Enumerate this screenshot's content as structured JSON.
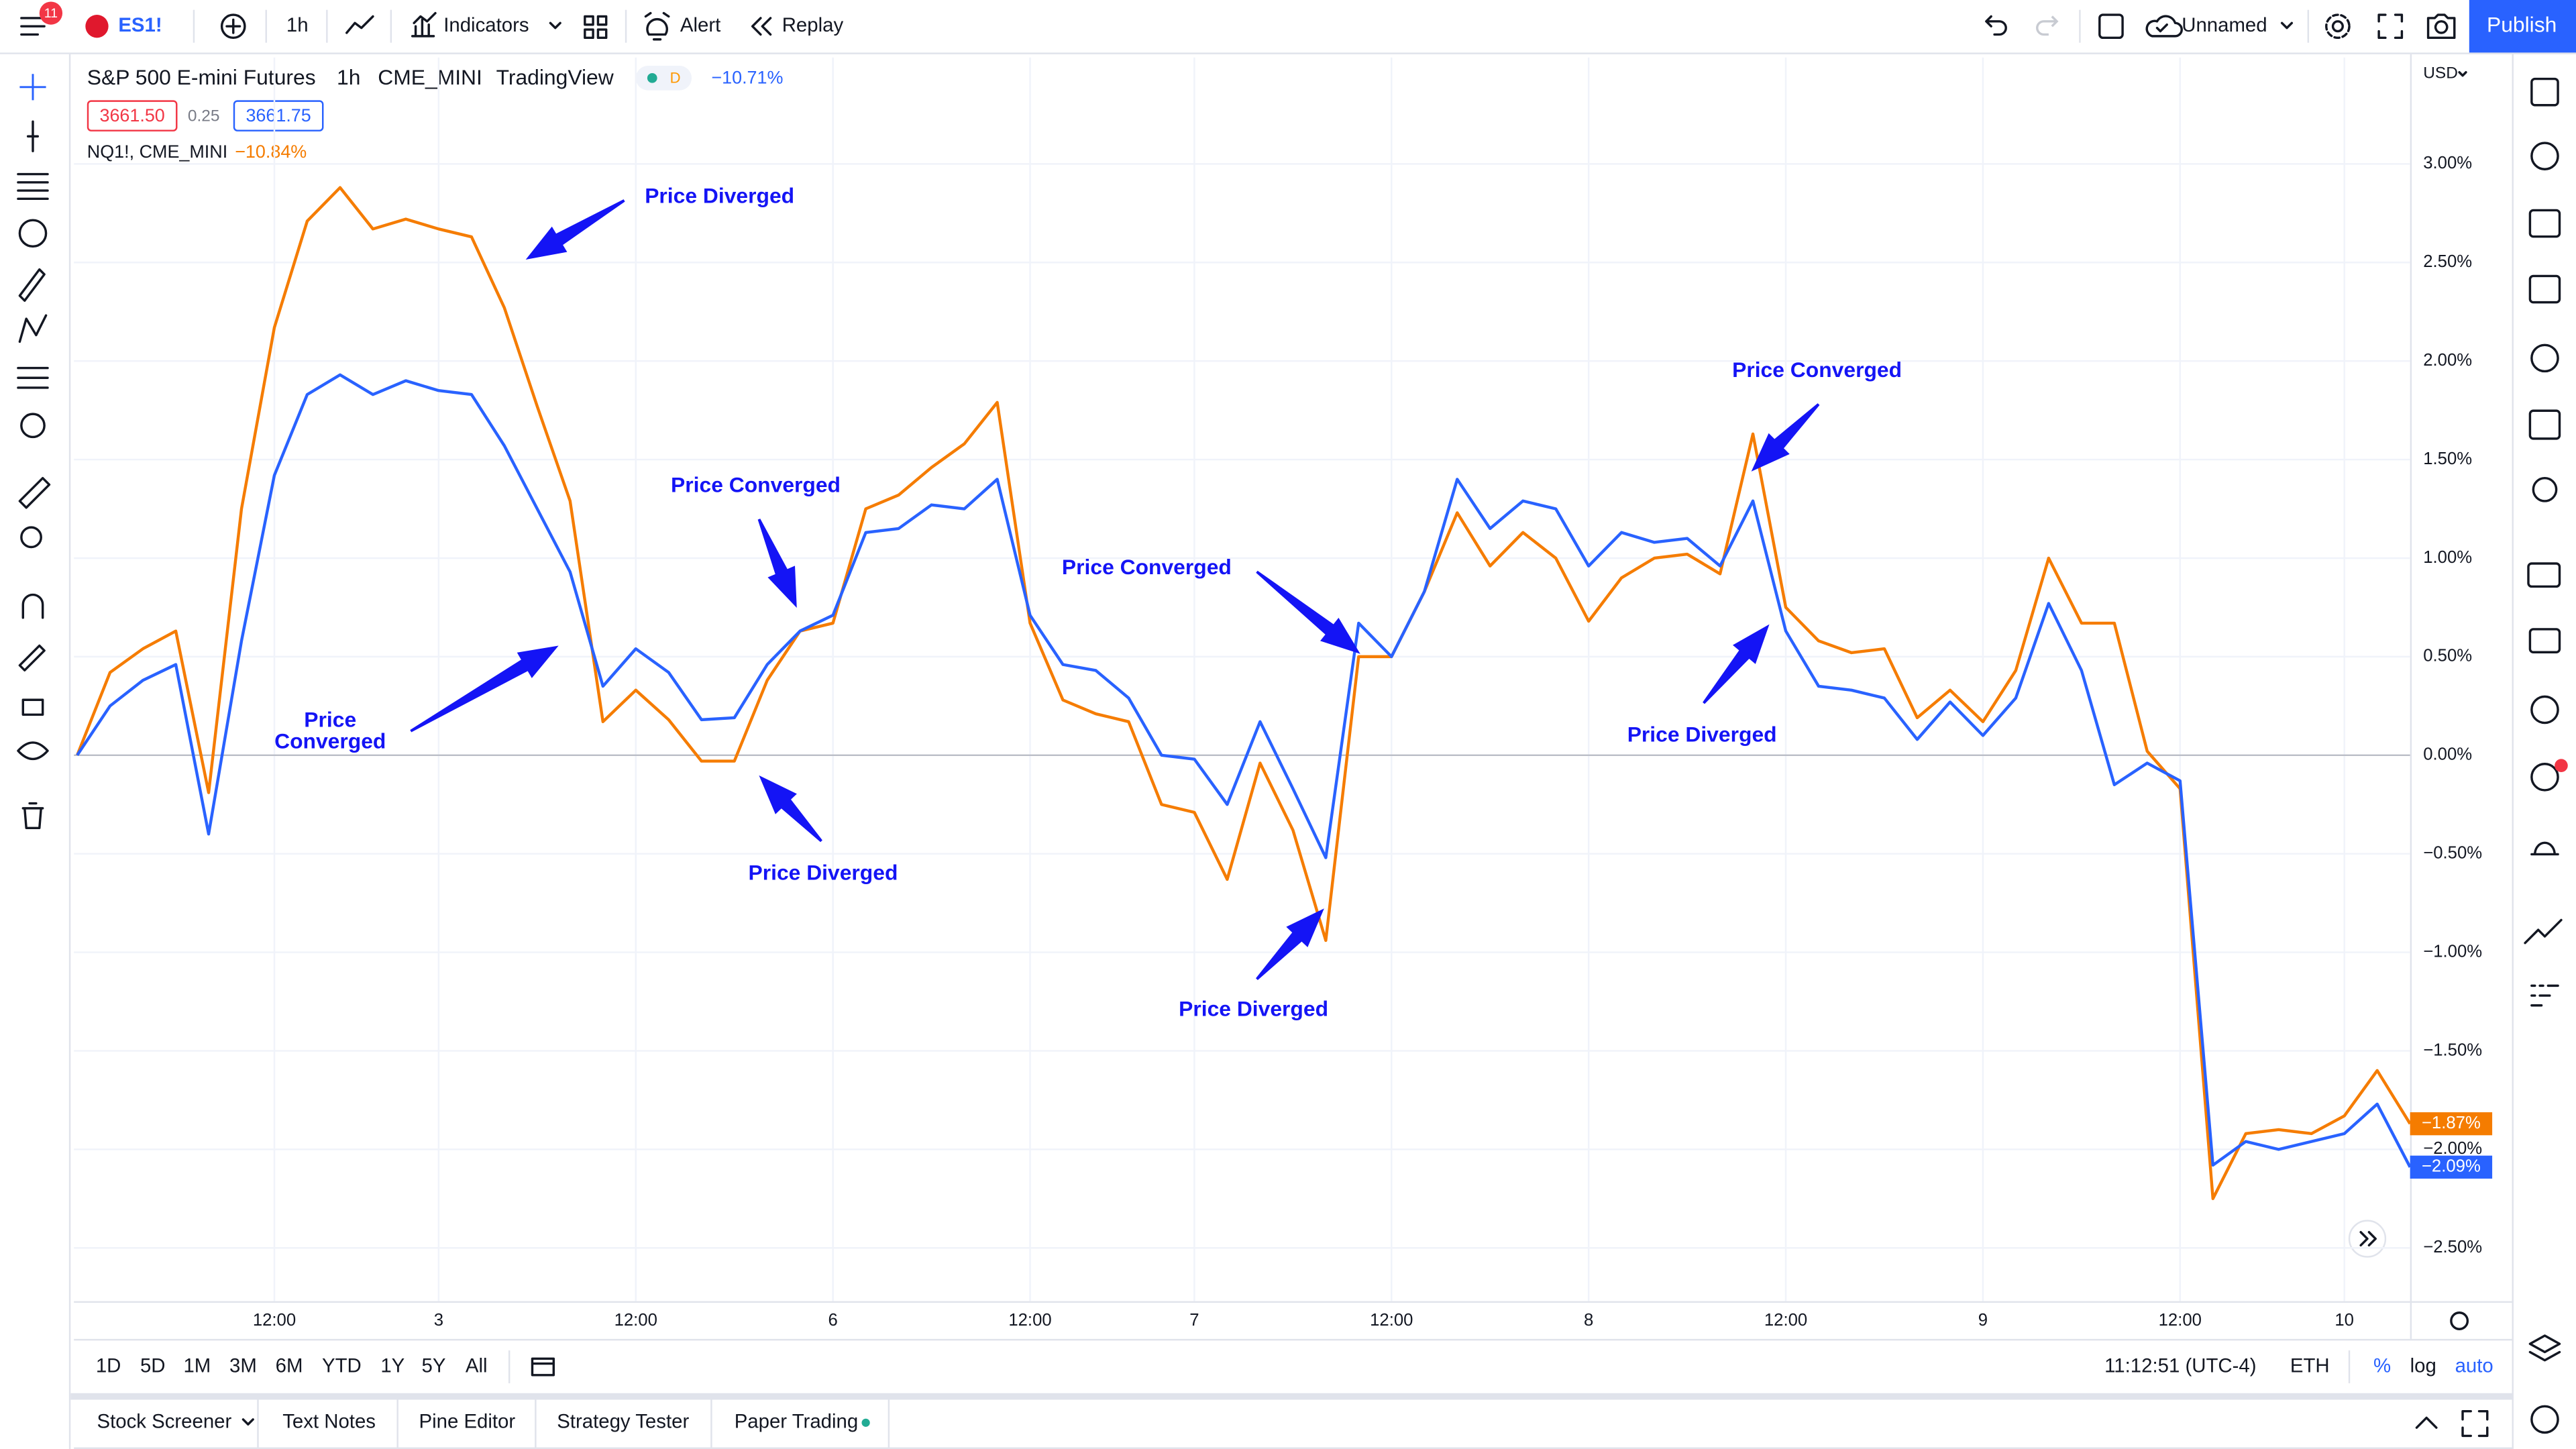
{
  "ui": {
    "top_bar": {
      "badge": "11",
      "symbol": "ES1!",
      "interval": "1h",
      "indicators": "Indicators",
      "alert": "Alert",
      "replay": "Replay",
      "layout_name": "Unnamed",
      "publish": "Publish"
    },
    "legend": {
      "interval": "1h",
      "exchange": "CME_MINI",
      "source": "TradingView",
      "flag": "D",
      "change": "−10.71%",
      "sell": "3661.50",
      "spread": "0.25",
      "buy": "3661.75",
      "compare_change": "−10.84%"
    },
    "currency": "USD",
    "bottom_bar": {
      "ranges": [
        "1D",
        "5D",
        "1M",
        "3M",
        "6M",
        "YTD",
        "1Y",
        "5Y",
        "All"
      ],
      "clock": "11:12:51 (UTC-4)",
      "session": "ETH",
      "percent": "%",
      "log": "log",
      "auto": "auto"
    },
    "tabs": [
      "Stock Screener",
      "Text Notes",
      "Pine Editor",
      "Strategy Tester",
      "Paper Trading"
    ]
  },
  "chart_data": {
    "type": "line",
    "categories": [
      null,
      null,
      null,
      null,
      null,
      null,
      "12:00",
      null,
      null,
      null,
      null,
      "3",
      null,
      null,
      null,
      null,
      null,
      "12:00",
      null,
      null,
      null,
      null,
      null,
      "6",
      null,
      null,
      null,
      null,
      null,
      "12:00",
      null,
      null,
      null,
      null,
      "7",
      null,
      null,
      null,
      null,
      null,
      "12:00",
      null,
      null,
      null,
      null,
      null,
      "8",
      null,
      null,
      null,
      null,
      null,
      "12:00",
      null,
      null,
      null,
      null,
      null,
      "9",
      null,
      null,
      null,
      null,
      null,
      "12:00",
      null,
      null,
      null,
      null,
      "10",
      null,
      null
    ],
    "series": [
      {
        "name": "S&P 500 E-mini Futures",
        "color": "#2962ff",
        "last_label": "−2.09%",
        "values": [
          0,
          0.25,
          0.38,
          0.46,
          -0.4,
          0.58,
          1.42,
          1.83,
          1.93,
          1.83,
          1.9,
          1.85,
          1.83,
          1.57,
          1.25,
          0.93,
          0.35,
          0.54,
          0.42,
          0.18,
          0.19,
          0.46,
          0.63,
          0.71,
          1.13,
          1.15,
          1.27,
          1.25,
          1.4,
          0.71,
          0.46,
          0.43,
          0.29,
          0,
          -0.02,
          -0.25,
          0.17,
          -0.17,
          -0.52,
          0.67,
          0.5,
          0.83,
          1.4,
          1.15,
          1.29,
          1.25,
          0.96,
          1.13,
          1.08,
          1.1,
          0.96,
          1.29,
          0.63,
          0.35,
          0.33,
          0.29,
          0.08,
          0.27,
          0.1,
          0.29,
          0.77,
          0.43,
          -0.15,
          -0.04,
          -0.13,
          -2.08,
          -1.96,
          -2,
          -1.96,
          -1.92,
          -1.77,
          -2.09
        ]
      },
      {
        "name": "NQ1!, CME_MINI",
        "color": "#f57c00",
        "last_label": "−1.87%",
        "values": [
          0,
          0.42,
          0.54,
          0.63,
          -0.19,
          1.25,
          2.17,
          2.71,
          2.88,
          2.67,
          2.72,
          2.67,
          2.63,
          2.27,
          1.77,
          1.29,
          0.17,
          0.33,
          0.18,
          -0.03,
          -0.03,
          0.38,
          0.63,
          0.67,
          1.25,
          1.32,
          1.46,
          1.58,
          1.79,
          0.67,
          0.28,
          0.21,
          0.17,
          -0.25,
          -0.29,
          -0.63,
          -0.04,
          -0.38,
          -0.94,
          0.5,
          0.5,
          0.83,
          1.23,
          0.96,
          1.13,
          1,
          0.68,
          0.9,
          1,
          1.02,
          0.92,
          1.63,
          0.75,
          0.58,
          0.52,
          0.54,
          0.19,
          0.33,
          0.17,
          0.43,
          1,
          0.67,
          0.67,
          0.02,
          -0.17,
          -2.25,
          -1.92,
          -1.9,
          -1.92,
          -1.83,
          -1.6,
          -1.87
        ]
      }
    ],
    "ylim": [
      -2.77,
      3.54
    ],
    "yticks": [
      {
        "value": 3,
        "label": "3.00%"
      },
      {
        "value": 2.5,
        "label": "2.50%"
      },
      {
        "value": 2,
        "label": "2.00%"
      },
      {
        "value": 1.5,
        "label": "1.50%"
      },
      {
        "value": 1,
        "label": "1.00%"
      },
      {
        "value": 0.5,
        "label": "0.50%"
      },
      {
        "value": 0,
        "label": "0.00%"
      },
      {
        "value": -0.5,
        "label": "−0.50%"
      },
      {
        "value": -1,
        "label": "−1.00%"
      },
      {
        "value": -1.5,
        "label": "−1.50%"
      },
      {
        "value": -2,
        "label": "−2.00%"
      },
      {
        "value": -2.5,
        "label": "−2.50%"
      }
    ],
    "grid": true,
    "annotations": [
      {
        "lines": [
          "Price Diverged"
        ]
      },
      {
        "lines": [
          "Price",
          "Converged"
        ]
      },
      {
        "lines": [
          "Price Converged"
        ]
      },
      {
        "lines": [
          "Price Diverged"
        ]
      },
      {
        "lines": [
          "Price Converged"
        ]
      },
      {
        "lines": [
          "Price Diverged"
        ]
      },
      {
        "lines": [
          "Price Converged"
        ]
      },
      {
        "lines": [
          "Price Diverged"
        ]
      }
    ]
  }
}
